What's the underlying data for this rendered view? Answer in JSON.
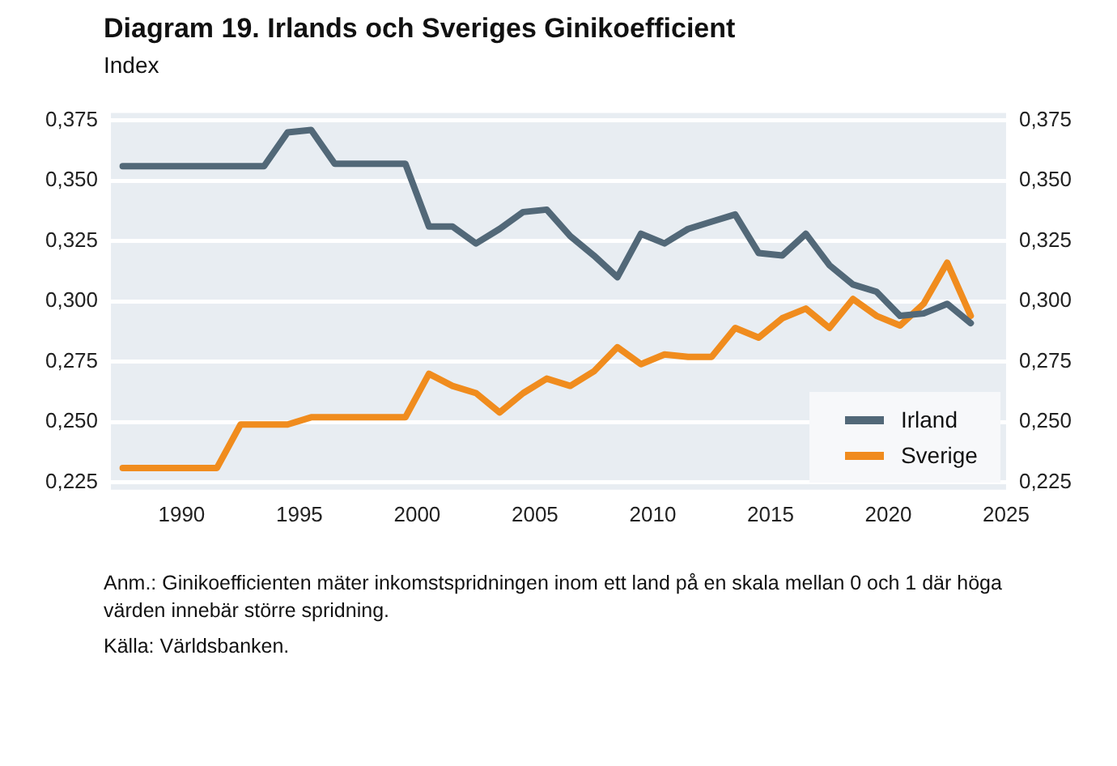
{
  "chart_data": {
    "type": "line",
    "title": "Diagram 19. Irlands och Sveriges Ginikoefficient",
    "subtitle": "Index",
    "annotations": [
      "Anm.: Ginikoefficienten mäter inkomstspridningen inom ett land på en skala mellan 0 och 1 där höga värden innebär större spridning.",
      "Källa: Världsbanken."
    ],
    "x": [
      1987.5,
      1988.5,
      1989.5,
      1990.5,
      1991.5,
      1992.5,
      1993.5,
      1994.5,
      1995.5,
      1996.5,
      1997.5,
      1998.5,
      1999.5,
      2000.5,
      2001.5,
      2002.5,
      2003.5,
      2004.5,
      2005.5,
      2006.5,
      2007.5,
      2008.5,
      2009.5,
      2010.5,
      2011.5,
      2012.5,
      2013.5,
      2014.5,
      2015.5,
      2016.5,
      2017.5,
      2018.5,
      2019.5,
      2020.5,
      2021.5,
      2022.5,
      2023.5
    ],
    "series": [
      {
        "name": "Irland",
        "color": "#526878",
        "values": [
          0.356,
          0.356,
          0.356,
          0.356,
          0.356,
          0.356,
          0.356,
          0.37,
          0.371,
          0.357,
          0.357,
          0.357,
          0.357,
          0.331,
          0.331,
          0.324,
          0.33,
          0.337,
          0.338,
          0.327,
          0.319,
          0.31,
          0.328,
          0.324,
          0.33,
          0.333,
          0.336,
          0.32,
          0.319,
          0.328,
          0.315,
          0.307,
          0.304,
          0.294,
          0.295,
          0.299,
          0.291
        ]
      },
      {
        "name": "Sverige",
        "color": "#f08c1e",
        "values": [
          0.231,
          0.231,
          0.231,
          0.231,
          0.231,
          0.249,
          0.249,
          0.249,
          0.252,
          0.252,
          0.252,
          0.252,
          0.252,
          0.27,
          0.265,
          0.262,
          0.254,
          0.262,
          0.268,
          0.265,
          0.271,
          0.281,
          0.274,
          0.278,
          0.277,
          0.277,
          0.289,
          0.285,
          0.293,
          0.297,
          0.289,
          0.301,
          0.294,
          0.29,
          0.299,
          0.316,
          0.294
        ]
      }
    ],
    "xlim": [
      1987,
      2025
    ],
    "xticks": [
      1990,
      1995,
      2000,
      2005,
      2010,
      2015,
      2020,
      2025
    ],
    "ylim": [
      0.222,
      0.378
    ],
    "yticks": [
      {
        "value": 0.225,
        "label": "0,225"
      },
      {
        "value": 0.25,
        "label": "0,250"
      },
      {
        "value": 0.275,
        "label": "0,275"
      },
      {
        "value": 0.3,
        "label": "0,300"
      },
      {
        "value": 0.325,
        "label": "0,325"
      },
      {
        "value": 0.35,
        "label": "0,350"
      },
      {
        "value": 0.375,
        "label": "0,375"
      }
    ],
    "y2lim": [
      0.222,
      0.378
    ],
    "y2ticks": [
      {
        "value": 0.225,
        "label": "0,225"
      },
      {
        "value": 0.25,
        "label": "0,250"
      },
      {
        "value": 0.275,
        "label": "0,275"
      },
      {
        "value": 0.3,
        "label": "0,300"
      },
      {
        "value": 0.325,
        "label": "0,325"
      },
      {
        "value": 0.35,
        "label": "0,350"
      },
      {
        "value": 0.375,
        "label": "0,375"
      }
    ],
    "grid": "y",
    "legend": "bottom right",
    "marker": "none",
    "line_style": "solid"
  }
}
